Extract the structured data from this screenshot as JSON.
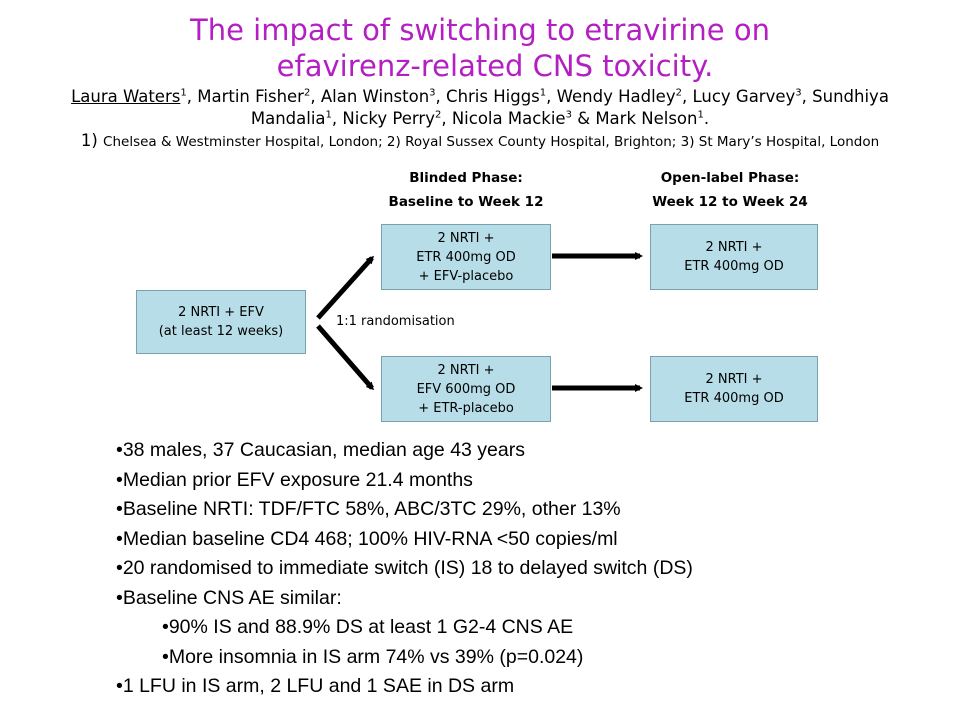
{
  "title": {
    "line1": "The impact of switching to etravirine on",
    "line2": "efavirenz-related CNS toxicity."
  },
  "authors": {
    "list": [
      {
        "name": "Laura Waters",
        "sup": "1",
        "sep": ", "
      },
      {
        "name": "Martin Fisher",
        "sup": "2",
        "sep": ", "
      },
      {
        "name": "Alan Winston",
        "sup": "3",
        "sep": ", "
      },
      {
        "name": "Chris Higgs",
        "sup": "1",
        "sep": ", "
      },
      {
        "name": "Wendy Hadley",
        "sup": "2",
        "sep": ", "
      },
      {
        "name": "Lucy Garvey",
        "sup": "3",
        "sep": ", "
      },
      {
        "name": "Sundhiya Mandalia",
        "sup": "1",
        "sep": ", "
      },
      {
        "name": "Nicky Perry",
        "sup": "2",
        "sep": ", "
      },
      {
        "name": "Nicola Mackie",
        "sup": "3",
        "sep": " & "
      },
      {
        "name": "Mark Nelson",
        "sup": "1",
        "sep": "."
      }
    ],
    "affiliation_num": "1)",
    "affiliations": "Chelsea & Westminster Hospital, London; 2) Royal Sussex County Hospital, Brighton; 3) St Mary’s Hospital, London"
  },
  "diagram": {
    "phase_blinded": {
      "line1": "Blinded Phase:",
      "line2": "Baseline to Week 12"
    },
    "phase_open": {
      "line1": "Open-label Phase:",
      "line2": "Week 12 to Week 24"
    },
    "start_box": {
      "line1": "2 NRTI + EFV",
      "line2": "(at least 12 weeks)"
    },
    "randomisation_label": "1:1 randomisation",
    "blinded_top": {
      "line1": "2 NRTI +",
      "line2": "ETR 400mg OD",
      "line3": "+ EFV-placebo"
    },
    "blinded_bottom": {
      "line1": "2 NRTI +",
      "line2": "EFV 600mg OD",
      "line3": "+ ETR-placebo"
    },
    "open_top": {
      "line1": "2 NRTI +",
      "line2": "ETR 400mg OD"
    },
    "open_bottom": {
      "line1": "2 NRTI +",
      "line2": "ETR 400mg OD"
    },
    "colors": {
      "box_fill": "#b7dde8",
      "title": "#b31fc2"
    }
  },
  "bullets": [
    {
      "text": "38 males, 37 Caucasian, median age 43 years",
      "level": 1
    },
    {
      "text": "Median prior EFV exposure 21.4 months",
      "level": 1
    },
    {
      "text": "Baseline NRTI: TDF/FTC 58%, ABC/3TC 29%, other 13%",
      "level": 1
    },
    {
      "text": "Median baseline CD4 468; 100% HIV-RNA <50 copies/ml",
      "level": 1
    },
    {
      "text": "20 randomised to immediate switch (IS) 18 to delayed switch (DS)",
      "level": 1
    },
    {
      "text": "Baseline CNS AE similar:",
      "level": 1
    },
    {
      "text": "90% IS and 88.9% DS at least 1 G2-4 CNS AE",
      "level": 2
    },
    {
      "text": "More insomnia in IS arm 74% vs 39% (p=0.024)",
      "level": 2
    },
    {
      "text": "1 LFU in IS arm, 2 LFU and 1 SAE in DS arm",
      "level": 1
    }
  ]
}
